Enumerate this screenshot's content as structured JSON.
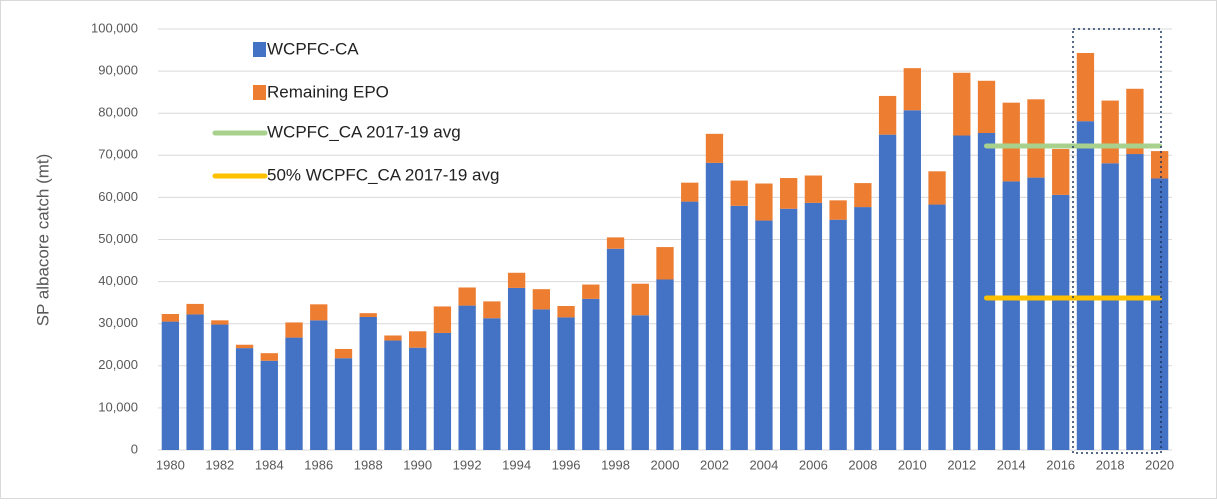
{
  "chart_data": {
    "type": "bar",
    "stacked": true,
    "ylabel": "SP albacore catch (mt)",
    "categories": [
      "1980",
      null,
      "1982",
      null,
      "1984",
      null,
      "1986",
      null,
      "1988",
      null,
      "1990",
      null,
      "1992",
      null,
      "1994",
      null,
      "1996",
      null,
      "1998",
      null,
      "2000",
      null,
      "2002",
      null,
      "2004",
      null,
      "2006",
      null,
      "2008",
      null,
      "2010",
      null,
      "2012",
      null,
      "2014",
      null,
      "2016",
      null,
      "2018",
      null,
      "2020"
    ],
    "ylim": [
      0,
      100000
    ],
    "yticks": [
      0,
      {
        "value": 10000,
        "label": "10,000"
      },
      {
        "value": 20000,
        "label": "20,000"
      },
      {
        "value": 30000,
        "label": "30,000"
      },
      {
        "value": 40000,
        "label": "40,000"
      },
      {
        "value": 50000,
        "label": "50,000"
      },
      {
        "value": 60000,
        "label": "60,000"
      },
      {
        "value": 70000,
        "label": "70,000"
      },
      {
        "value": 80000,
        "label": "80,000"
      },
      {
        "value": 90000,
        "label": "90,000"
      },
      {
        "value": 100000,
        "label": "100,000"
      }
    ],
    "grid": true,
    "legend": "top-left",
    "series": [
      {
        "name": "WCPFC-CA",
        "type": "bar",
        "color": "#4472c4",
        "values": [
          30500,
          32200,
          29800,
          24200,
          21200,
          26700,
          30800,
          21800,
          31600,
          26000,
          24300,
          27800,
          34300,
          31300,
          38500,
          33400,
          31500,
          35900,
          47800,
          32000,
          40500,
          59000,
          68200,
          58000,
          54500,
          57300,
          58700,
          54700,
          57700,
          74900,
          80700,
          58300,
          74700,
          75300,
          63800,
          64700,
          60600,
          78100,
          68100,
          70300,
          64500
        ]
      },
      {
        "name": "Remaining EPO",
        "type": "bar",
        "color": "#ed7d31",
        "values": [
          1800,
          2500,
          1000,
          800,
          1800,
          3600,
          3800,
          2200,
          900,
          1200,
          3900,
          6300,
          4300,
          4000,
          3600,
          4800,
          2700,
          3400,
          2700,
          7500,
          7700,
          4500,
          6900,
          6000,
          8800,
          7300,
          6500,
          4600,
          5700,
          9200,
          10000,
          7900,
          14900,
          12400,
          18700,
          18600,
          10900,
          16200,
          14900,
          15500,
          6500
        ]
      },
      {
        "name": "WCPFC_CA 2017-19 avg",
        "type": "line",
        "color": "#a9d18e",
        "values": [
          null,
          null,
          null,
          null,
          null,
          null,
          null,
          null,
          null,
          null,
          null,
          null,
          null,
          null,
          null,
          null,
          null,
          null,
          null,
          null,
          null,
          null,
          null,
          null,
          null,
          null,
          null,
          null,
          null,
          null,
          null,
          null,
          null,
          72200,
          72200,
          72200,
          72200,
          72200,
          72200,
          72200,
          72200
        ]
      },
      {
        "name": "50% WCPFC_CA 2017-19 avg",
        "type": "line",
        "color": "#ffc000",
        "values": [
          null,
          null,
          null,
          null,
          null,
          null,
          null,
          null,
          null,
          null,
          null,
          null,
          null,
          null,
          null,
          null,
          null,
          null,
          null,
          null,
          null,
          null,
          null,
          null,
          null,
          null,
          null,
          null,
          null,
          null,
          null,
          null,
          null,
          36100,
          36100,
          36100,
          36100,
          36100,
          36100,
          36100,
          36100
        ]
      }
    ]
  }
}
